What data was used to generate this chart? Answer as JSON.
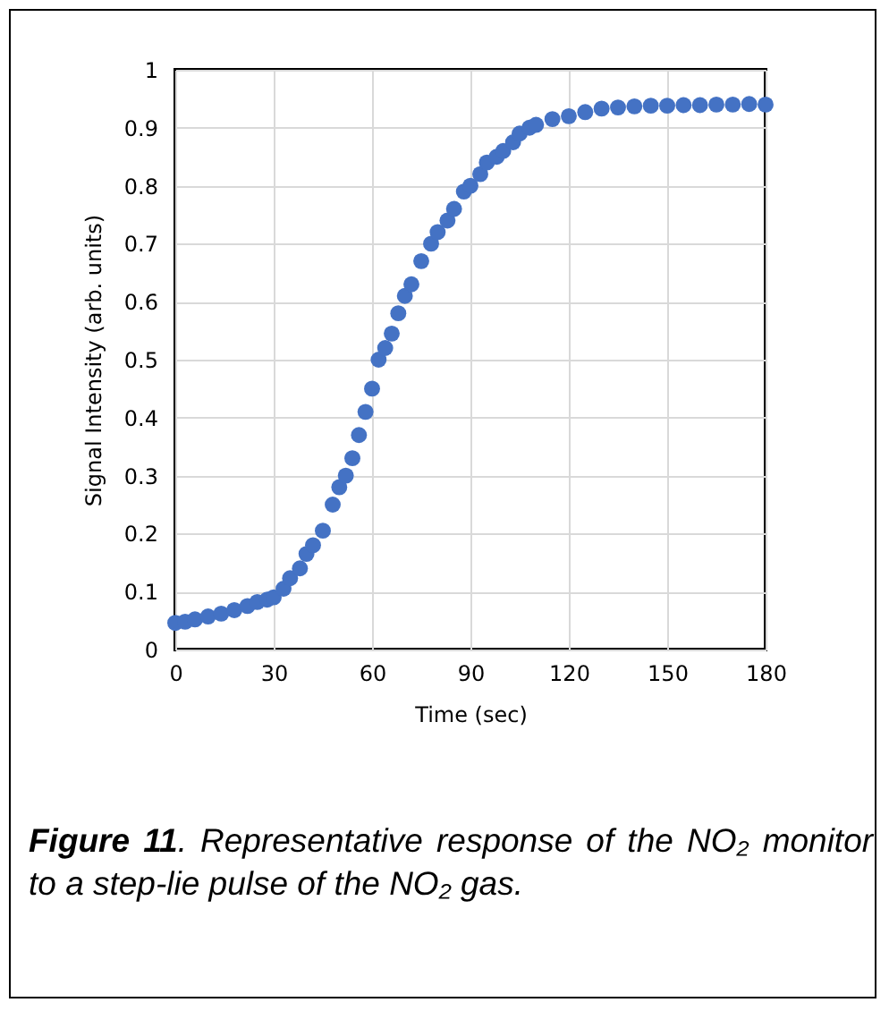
{
  "chart_data": {
    "type": "scatter",
    "xlabel": "Time (sec)",
    "ylabel": "Signal Intensity (arb. units)",
    "annotations": [
      "Figure 11. Representative response of the NO₂ monitor to a step-lie pulse of the NO₂ gas."
    ],
    "x": [
      0,
      3,
      6,
      10,
      14,
      18,
      22,
      25,
      28,
      30,
      33,
      35,
      38,
      40,
      42,
      45,
      48,
      50,
      52,
      54,
      56,
      58,
      60,
      62,
      64,
      66,
      68,
      70,
      72,
      75,
      78,
      80,
      83,
      85,
      88,
      90,
      93,
      95,
      98,
      100,
      103,
      105,
      108,
      110,
      115,
      120,
      125,
      130,
      135,
      140,
      145,
      150,
      155,
      160,
      165,
      170,
      175,
      180
    ],
    "series": [
      {
        "color": "#4472c4",
        "values": [
          0.046,
          0.048,
          0.052,
          0.057,
          0.062,
          0.068,
          0.075,
          0.082,
          0.086,
          0.09,
          0.105,
          0.123,
          0.14,
          0.165,
          0.18,
          0.205,
          0.25,
          0.28,
          0.3,
          0.33,
          0.37,
          0.41,
          0.45,
          0.5,
          0.52,
          0.545,
          0.58,
          0.61,
          0.63,
          0.67,
          0.7,
          0.72,
          0.74,
          0.76,
          0.79,
          0.8,
          0.82,
          0.84,
          0.85,
          0.86,
          0.875,
          0.89,
          0.9,
          0.905,
          0.915,
          0.92,
          0.927,
          0.933,
          0.935,
          0.937,
          0.938,
          0.938,
          0.939,
          0.939,
          0.94,
          0.94,
          0.941,
          0.94
        ]
      }
    ],
    "xlim": [
      0,
      180
    ],
    "xticks": [
      0,
      30,
      60,
      90,
      120,
      150,
      180
    ],
    "ylim": [
      0,
      1
    ],
    "yticks": [
      0,
      0.1,
      0.2,
      0.3,
      0.4,
      0.5,
      0.6,
      0.7,
      0.8,
      0.9,
      1
    ],
    "grid": true,
    "marker": "circle"
  }
}
